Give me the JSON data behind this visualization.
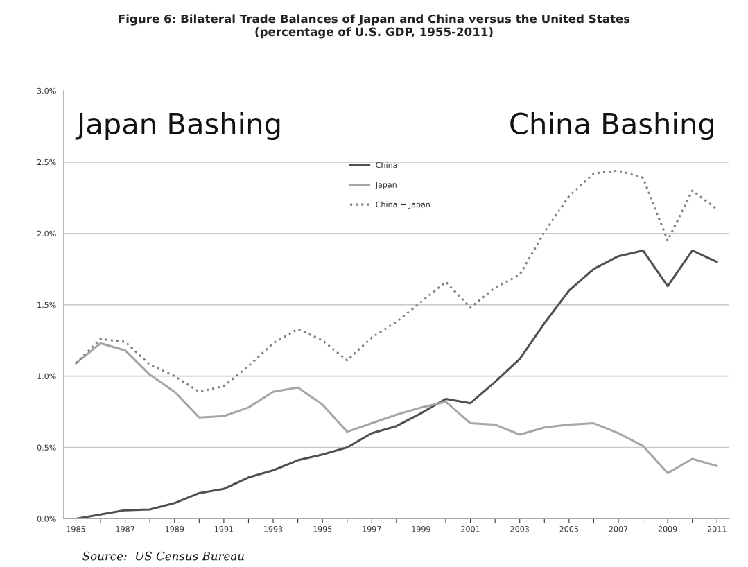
{
  "chart_data": {
    "type": "line",
    "title": "Figure 6: Bilateral Trade Balances of Japan and China versus the United States\n(percentage of U.S. GDP, 1955-2011)",
    "categories": [
      "1985",
      null,
      "1987",
      null,
      "1989",
      null,
      "1991",
      null,
      "1993",
      null,
      "1995",
      null,
      "1997",
      null,
      "1999",
      null,
      "2001",
      null,
      "2003",
      null,
      "2005",
      null,
      "2007",
      null,
      "2009",
      null,
      "2011"
    ],
    "series": [
      {
        "name": "China",
        "color": "#505050",
        "line_style": "solid",
        "values": [
          0.0,
          0.03,
          0.06,
          0.065,
          0.11,
          0.18,
          0.21,
          0.29,
          0.34,
          0.41,
          0.45,
          0.5,
          0.6,
          0.65,
          0.74,
          0.84,
          0.81,
          0.96,
          1.12,
          1.37,
          1.6,
          1.75,
          1.84,
          1.88,
          1.63,
          1.88,
          1.8
        ]
      },
      {
        "name": "Japan",
        "color": "#a6a6a6",
        "line_style": "solid",
        "values": [
          1.09,
          1.23,
          1.18,
          1.01,
          0.89,
          0.71,
          0.72,
          0.78,
          0.89,
          0.92,
          0.8,
          0.61,
          0.67,
          0.73,
          0.78,
          0.82,
          0.67,
          0.66,
          0.59,
          0.64,
          0.66,
          0.67,
          0.6,
          0.51,
          0.32,
          0.42,
          0.37
        ]
      },
      {
        "name": "China + Japan",
        "color": "#808080",
        "line_style": "dotted",
        "values": [
          1.09,
          1.26,
          1.24,
          1.08,
          1.0,
          0.89,
          0.93,
          1.07,
          1.23,
          1.33,
          1.25,
          1.11,
          1.27,
          1.38,
          1.52,
          1.66,
          1.48,
          1.62,
          1.71,
          2.01,
          2.26,
          2.42,
          2.44,
          2.39,
          1.95,
          2.3,
          2.17
        ]
      }
    ],
    "ylim": [
      0,
      3
    ],
    "yticks": [
      {
        "value": 0,
        "label": "0.0%"
      },
      {
        "value": 0.5,
        "label": "0.5%"
      },
      {
        "value": 1,
        "label": "1.0%"
      },
      {
        "value": 1.5,
        "label": "1.5%"
      },
      {
        "value": 2,
        "label": "2.0%"
      },
      {
        "value": 2.5,
        "label": "2.5%"
      },
      {
        "value": 3,
        "label": "3.0%"
      }
    ],
    "grid": "y",
    "legend": "top",
    "marker": "none",
    "annotations": [
      "Japan Bashing",
      "China Bashing",
      "Source:  US Census Bureau"
    ]
  }
}
